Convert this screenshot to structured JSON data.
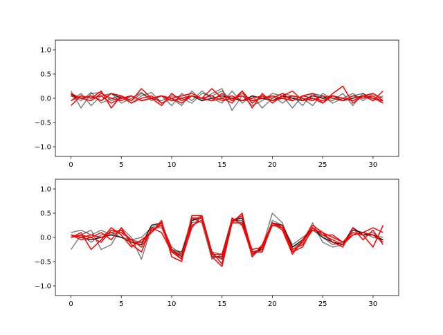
{
  "chart_data": [
    {
      "type": "line",
      "xlim": [
        -1.55,
        32.55
      ],
      "ylim": [
        -1.2,
        1.2
      ],
      "xticks": [
        0,
        5,
        10,
        15,
        20,
        25,
        30
      ],
      "yticks": [
        -1.0,
        -0.5,
        0.0,
        0.5,
        1.0
      ],
      "xtick_labels": [
        "0",
        "5",
        "10",
        "15",
        "20",
        "25",
        "30"
      ],
      "ytick_labels": [
        "−1.0",
        "−0.5",
        "0.0",
        "0.5",
        "1.0"
      ],
      "grid": false,
      "x": [
        0,
        1,
        2,
        3,
        4,
        5,
        6,
        7,
        8,
        9,
        10,
        11,
        12,
        13,
        14,
        15,
        16,
        17,
        18,
        19,
        20,
        21,
        22,
        23,
        24,
        25,
        26,
        27,
        28,
        29,
        30,
        31
      ],
      "series": [
        {
          "color": "#000000",
          "opacity": 0.5,
          "values": [
            0.15,
            -0.2,
            0.1,
            0.12,
            -0.05,
            0.02,
            -0.1,
            0.05,
            0.12,
            -0.1,
            0.0,
            -0.15,
            0.15,
            -0.05,
            0.1,
            0.2,
            -0.25,
            0.05,
            -0.15,
            -0.05,
            0.1,
            0.05,
            -0.2,
            0.05,
            0.1,
            0.0,
            -0.05,
            0.1,
            -0.15,
            0.1,
            0.0,
            -0.1
          ]
        },
        {
          "color": "#000000",
          "opacity": 0.5,
          "values": [
            -0.05,
            0.1,
            -0.15,
            0.05,
            0.1,
            -0.1,
            0.0,
            0.12,
            -0.05,
            0.05,
            -0.15,
            0.1,
            -0.05,
            0.15,
            0.0,
            -0.1,
            0.15,
            -0.1,
            0.05,
            -0.2,
            0.0,
            0.1,
            0.05,
            -0.15,
            0.1,
            0.05,
            -0.1,
            0.0,
            0.1,
            -0.05,
            0.1,
            0.0
          ]
        },
        {
          "color": "#000000",
          "opacity": 0.5,
          "values": [
            0.05,
            -0.05,
            0.12,
            -0.1,
            0.0,
            0.05,
            -0.05,
            0.1,
            0.0,
            -0.05,
            0.05,
            0.0,
            -0.1,
            0.1,
            0.05,
            0.15,
            -0.05,
            0.1,
            -0.05,
            0.0,
            0.05,
            -0.1,
            0.05,
            0.0,
            -0.15,
            0.1,
            0.0,
            -0.05,
            0.05,
            0.1,
            -0.05,
            0.05
          ]
        },
        {
          "color": "#000000",
          "opacity": 0.85,
          "values": [
            0.08,
            0.0,
            0.05,
            -0.05,
            0.1,
            0.0,
            0.05,
            -0.05,
            0.0,
            0.05,
            -0.05,
            0.0,
            0.05,
            -0.05,
            0.0,
            0.05,
            0.0,
            -0.05,
            0.05,
            0.0,
            -0.05,
            0.05,
            0.0,
            -0.05,
            0.05,
            0.0,
            0.05,
            -0.05,
            0.0,
            0.05,
            0.0,
            -0.05
          ]
        },
        {
          "color": "#ff0000",
          "opacity": 1,
          "values": [
            -0.15,
            0.05,
            0.0,
            0.15,
            -0.2,
            0.05,
            -0.05,
            0.2,
            0.0,
            -0.15,
            0.1,
            -0.05,
            0.05,
            0.0,
            0.2,
            0.0,
            -0.1,
            0.15,
            -0.2,
            0.1,
            -0.1,
            0.05,
            0.15,
            -0.05,
            0.0,
            -0.1,
            0.1,
            0.25,
            -0.1,
            0.05,
            -0.05,
            0.15
          ]
        },
        {
          "color": "#ff0000",
          "opacity": 1,
          "values": [
            0.1,
            0.0,
            0.05,
            -0.05,
            0.1,
            0.05,
            -0.1,
            0.0,
            0.05,
            -0.1,
            0.0,
            0.05,
            0.1,
            0.0,
            -0.05,
            0.1,
            -0.05,
            0.15,
            -0.1,
            0.05,
            0.0,
            0.1,
            -0.05,
            0.05,
            0.1,
            -0.1,
            0.05,
            0.0,
            -0.05,
            0.05,
            0.1,
            -0.05
          ]
        },
        {
          "color": "#ff0000",
          "opacity": 1,
          "values": [
            0.05,
            0.0,
            -0.05,
            0.1,
            0.0,
            -0.05,
            0.05,
            -0.05,
            0.0,
            0.05,
            0.0,
            -0.1,
            0.05,
            0.0,
            0.05,
            -0.05,
            0.0,
            0.05,
            -0.05,
            0.0,
            0.05,
            0.0,
            -0.05,
            0.05,
            0.0,
            -0.05,
            0.05,
            0.0,
            -0.05,
            0.05,
            0.0,
            -0.05
          ]
        },
        {
          "color": "#ff0000",
          "opacity": 1,
          "values": [
            -0.05,
            0.05,
            0.0,
            0.05,
            -0.1,
            0.0,
            0.05,
            -0.05,
            0.0,
            0.05,
            -0.05,
            0.0,
            0.05,
            0.0,
            -0.05,
            0.0,
            0.05,
            -0.05,
            0.0,
            0.05,
            -0.05,
            0.0,
            0.05,
            0.0,
            -0.05,
            0.05,
            0.0,
            -0.05,
            0.05,
            0.0,
            0.05,
            -0.1
          ]
        }
      ]
    },
    {
      "type": "line",
      "xlim": [
        -1.55,
        32.55
      ],
      "ylim": [
        -1.2,
        1.2
      ],
      "xticks": [
        0,
        5,
        10,
        15,
        20,
        25,
        30
      ],
      "yticks": [
        -1.0,
        -0.5,
        0.0,
        0.5,
        1.0
      ],
      "xtick_labels": [
        "0",
        "5",
        "10",
        "15",
        "20",
        "25",
        "30"
      ],
      "ytick_labels": [
        "−1.0",
        "−0.5",
        "0.0",
        "0.5",
        "1.0"
      ],
      "grid": false,
      "x": [
        0,
        1,
        2,
        3,
        4,
        5,
        6,
        7,
        8,
        9,
        10,
        11,
        12,
        13,
        14,
        15,
        16,
        17,
        18,
        19,
        20,
        21,
        22,
        23,
        24,
        25,
        26,
        27,
        28,
        29,
        30,
        31
      ],
      "series": [
        {
          "color": "#000000",
          "opacity": 0.5,
          "values": [
            -0.25,
            0.05,
            0.15,
            -0.25,
            -0.15,
            0.2,
            0.0,
            -0.45,
            0.2,
            0.3,
            -0.25,
            -0.3,
            0.4,
            0.3,
            -0.45,
            -0.35,
            0.4,
            0.3,
            -0.4,
            -0.2,
            0.5,
            0.3,
            -0.25,
            -0.1,
            0.3,
            -0.1,
            -0.2,
            -0.15,
            0.2,
            0.05,
            0.1,
            -0.1
          ]
        },
        {
          "color": "#000000",
          "opacity": 0.5,
          "values": [
            0.1,
            0.15,
            0.05,
            0.15,
            0.05,
            0.15,
            -0.05,
            -0.1,
            0.15,
            0.25,
            -0.2,
            -0.35,
            0.35,
            0.45,
            -0.35,
            -0.45,
            0.3,
            0.45,
            -0.3,
            -0.25,
            0.35,
            0.25,
            -0.15,
            0.0,
            0.15,
            0.0,
            -0.15,
            -0.1,
            0.15,
            0.1,
            0.05,
            0.0
          ]
        },
        {
          "color": "#000000",
          "opacity": 0.5,
          "values": [
            0.0,
            0.05,
            -0.1,
            0.05,
            0.1,
            0.0,
            -0.05,
            0.0,
            0.2,
            0.2,
            -0.3,
            -0.3,
            0.3,
            0.35,
            -0.3,
            -0.35,
            0.35,
            0.35,
            -0.3,
            -0.25,
            0.3,
            0.2,
            -0.2,
            -0.1,
            0.2,
            0.05,
            -0.1,
            -0.15,
            0.15,
            0.1,
            0.0,
            -0.05
          ]
        },
        {
          "color": "#000000",
          "opacity": 0.85,
          "values": [
            0.05,
            0.0,
            -0.05,
            0.0,
            0.05,
            0.0,
            -0.1,
            -0.15,
            0.25,
            0.3,
            -0.25,
            -0.4,
            0.35,
            0.4,
            -0.4,
            -0.4,
            0.35,
            0.4,
            -0.35,
            -0.2,
            0.3,
            0.25,
            -0.2,
            -0.05,
            0.2,
            0.0,
            -0.1,
            -0.15,
            0.2,
            0.05,
            0.05,
            -0.05
          ]
        },
        {
          "color": "#ff0000",
          "opacity": 1,
          "values": [
            0.0,
            0.1,
            -0.25,
            -0.05,
            0.2,
            0.05,
            -0.2,
            -0.05,
            0.1,
            0.35,
            -0.4,
            -0.5,
            0.45,
            0.45,
            -0.4,
            -0.6,
            0.3,
            0.5,
            -0.4,
            -0.15,
            0.3,
            0.15,
            -0.35,
            -0.05,
            0.25,
            0.1,
            -0.1,
            -0.2,
            0.2,
            -0.05,
            0.15,
            -0.15
          ]
        },
        {
          "color": "#ff0000",
          "opacity": 1,
          "values": [
            0.05,
            -0.05,
            0.0,
            0.1,
            -0.05,
            0.2,
            -0.15,
            -0.3,
            0.2,
            0.1,
            -0.3,
            -0.45,
            0.2,
            0.45,
            -0.3,
            -0.55,
            0.4,
            0.25,
            -0.35,
            -0.25,
            0.25,
            0.2,
            -0.3,
            -0.1,
            0.2,
            0.05,
            -0.05,
            -0.15,
            0.05,
            0.1,
            0.2,
            0.1
          ]
        },
        {
          "color": "#ff0000",
          "opacity": 1,
          "values": [
            0.0,
            0.05,
            0.0,
            -0.1,
            0.15,
            0.1,
            -0.05,
            -0.2,
            0.15,
            0.25,
            -0.3,
            -0.35,
            0.25,
            0.35,
            -0.35,
            -0.35,
            0.3,
            0.3,
            -0.25,
            -0.2,
            0.25,
            0.25,
            -0.25,
            -0.15,
            0.15,
            0.1,
            0.0,
            -0.1,
            0.1,
            0.05,
            -0.2,
            0.25
          ]
        },
        {
          "color": "#ff0000",
          "opacity": 1,
          "values": [
            0.05,
            0.0,
            0.05,
            0.0,
            0.1,
            0.15,
            -0.1,
            -0.1,
            0.1,
            0.3,
            -0.25,
            -0.45,
            0.4,
            0.4,
            -0.35,
            -0.45,
            0.35,
            0.45,
            -0.3,
            -0.3,
            0.3,
            0.2,
            -0.3,
            -0.2,
            0.2,
            0.05,
            0.05,
            -0.1,
            0.05,
            0.1,
            0.05,
            -0.1
          ]
        }
      ]
    }
  ]
}
